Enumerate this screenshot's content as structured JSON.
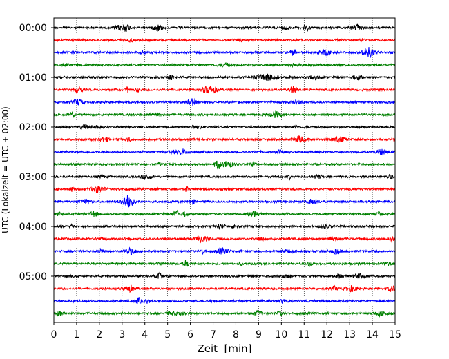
{
  "chart_data": {
    "type": "line",
    "title": "",
    "xlabel": "Zeit  [min]",
    "ylabel": "UTC (Lokalzeit = UTC + 02:00)",
    "xlim": [
      0,
      15
    ],
    "x_ticks": [
      "0",
      "1",
      "2",
      "3",
      "4",
      "5",
      "6",
      "7",
      "8",
      "9",
      "10",
      "11",
      "12",
      "13",
      "14",
      "15"
    ],
    "y_ticks": [
      "00:00",
      "01:00",
      "02:00",
      "03:00",
      "04:00",
      "05:00"
    ],
    "grid": "vertical dotted at each minute",
    "trace_count": 24,
    "trace_interval_min": 15,
    "trace_colors": [
      "#000000",
      "#ff0000",
      "#0000ff",
      "#008000"
    ]
  }
}
